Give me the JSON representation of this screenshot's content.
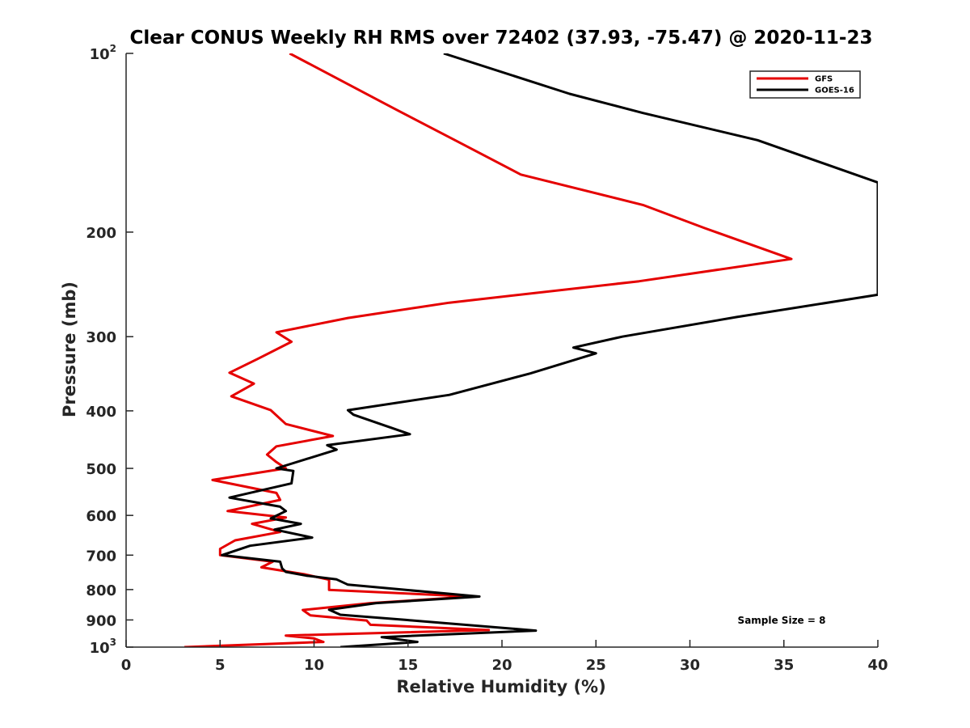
{
  "chart_data": {
    "type": "line",
    "title": "Clear CONUS Weekly RH RMS over 72402 (37.93, -75.47) @ 2020-11-23",
    "xlabel": "Relative Humidity (%)",
    "ylabel": "Pressure (mb)",
    "xlim": [
      0,
      40
    ],
    "ylim": [
      100,
      1000
    ],
    "yscale": "log",
    "y_reversed": true,
    "grid": false,
    "x_ticks": [
      0,
      5,
      10,
      15,
      20,
      25,
      30,
      35,
      40
    ],
    "x_tick_labels": [
      "0",
      "5",
      "10",
      "15",
      "20",
      "25",
      "30",
      "35",
      "40"
    ],
    "y_ticks": [
      100,
      200,
      300,
      400,
      500,
      600,
      700,
      800,
      900,
      1000
    ],
    "y_tick_labels": [
      {
        "base": "10",
        "sup": "2"
      },
      {
        "base": "200",
        "sup": ""
      },
      {
        "base": "300",
        "sup": ""
      },
      {
        "base": "400",
        "sup": ""
      },
      {
        "base": "500",
        "sup": ""
      },
      {
        "base": "600",
        "sup": ""
      },
      {
        "base": "700",
        "sup": ""
      },
      {
        "base": "800",
        "sup": ""
      },
      {
        "base": "900",
        "sup": ""
      },
      {
        "base": "10",
        "sup": "3"
      }
    ],
    "legend_position": "top-right",
    "annotation": "Sample Size = 8",
    "series": [
      {
        "name": "GFS",
        "color": "#e50000",
        "points": [
          [
            8.7,
            100
          ],
          [
            14.5,
            125
          ],
          [
            17.5,
            140
          ],
          [
            21.0,
            160
          ],
          [
            27.5,
            180
          ],
          [
            30.8,
            197
          ],
          [
            35.4,
            222
          ],
          [
            27.3,
            242
          ],
          [
            17.2,
            263
          ],
          [
            11.8,
            279
          ],
          [
            8.0,
            295
          ],
          [
            8.8,
            306
          ],
          [
            7.0,
            327
          ],
          [
            5.5,
            345
          ],
          [
            6.8,
            360
          ],
          [
            5.6,
            378
          ],
          [
            7.7,
            399
          ],
          [
            8.5,
            421
          ],
          [
            11.0,
            441
          ],
          [
            8.0,
            459
          ],
          [
            7.5,
            474
          ],
          [
            8.0,
            488
          ],
          [
            8.5,
            500
          ],
          [
            4.6,
            523
          ],
          [
            8.0,
            550
          ],
          [
            8.2,
            565
          ],
          [
            5.4,
            590
          ],
          [
            8.5,
            605
          ],
          [
            6.7,
            620
          ],
          [
            8.2,
            640
          ],
          [
            5.8,
            661
          ],
          [
            5.0,
            683
          ],
          [
            5.0,
            700
          ],
          [
            7.8,
            718
          ],
          [
            7.2,
            734
          ],
          [
            9.5,
            754
          ],
          [
            10.8,
            770
          ],
          [
            10.8,
            801
          ],
          [
            18.4,
            822
          ],
          [
            13.0,
            843
          ],
          [
            9.4,
            866
          ],
          [
            9.8,
            884
          ],
          [
            12.8,
            902
          ],
          [
            13.0,
            917
          ],
          [
            19.3,
            936
          ],
          [
            8.5,
            956
          ],
          [
            10.0,
            967
          ],
          [
            10.5,
            980
          ],
          [
            3.1,
            1000
          ]
        ]
      },
      {
        "name": "GOES-16",
        "color": "#000000",
        "points": [
          [
            16.9,
            100
          ],
          [
            23.6,
            117
          ],
          [
            27.5,
            126
          ],
          [
            33.6,
            140
          ],
          [
            40.0,
            165
          ],
          [
            40.0,
            255
          ],
          [
            32.5,
            278
          ],
          [
            26.4,
            300
          ],
          [
            23.8,
            313
          ],
          [
            25.0,
            320
          ],
          [
            21.5,
            346
          ],
          [
            17.2,
            376
          ],
          [
            11.8,
            399
          ],
          [
            12.1,
            406
          ],
          [
            15.1,
            438
          ],
          [
            10.7,
            457
          ],
          [
            11.2,
            465
          ],
          [
            8.0,
            500
          ],
          [
            8.9,
            505
          ],
          [
            8.8,
            530
          ],
          [
            5.5,
            560
          ],
          [
            8.2,
            580
          ],
          [
            8.5,
            590
          ],
          [
            7.7,
            607
          ],
          [
            9.3,
            620
          ],
          [
            7.9,
            634
          ],
          [
            9.9,
            654
          ],
          [
            6.6,
            675
          ],
          [
            5.1,
            700
          ],
          [
            8.2,
            718
          ],
          [
            8.3,
            737
          ],
          [
            8.5,
            747
          ],
          [
            9.6,
            758
          ],
          [
            11.2,
            769
          ],
          [
            11.8,
            785
          ],
          [
            18.8,
            822
          ],
          [
            13.3,
            843
          ],
          [
            10.8,
            865
          ],
          [
            11.4,
            882
          ],
          [
            14.9,
            900
          ],
          [
            17.3,
            913
          ],
          [
            21.8,
            938
          ],
          [
            13.6,
            962
          ],
          [
            15.5,
            980
          ],
          [
            11.4,
            1000
          ]
        ]
      }
    ]
  }
}
